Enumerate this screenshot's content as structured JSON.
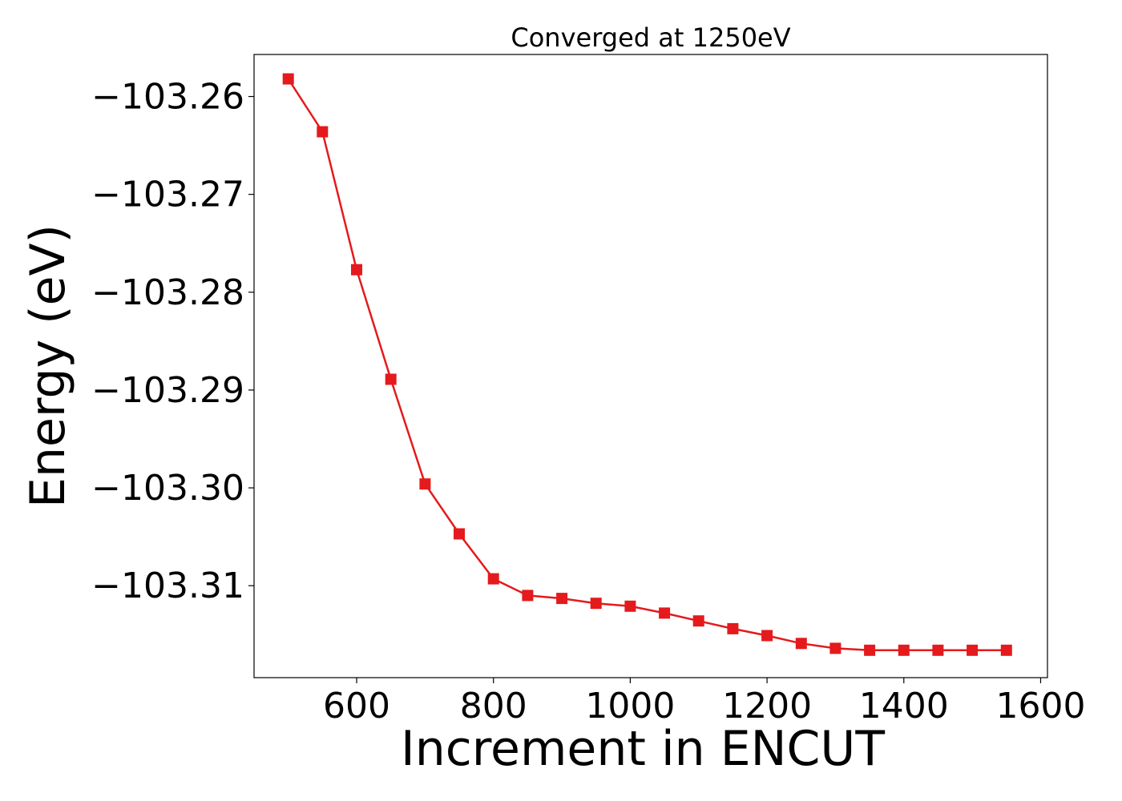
{
  "chart_data": {
    "type": "line",
    "title": "Converged at 1250eV",
    "xlabel": "Increment in ENCUT",
    "ylabel": "Energy (eV)",
    "xlim": [
      450,
      1610
    ],
    "ylim": [
      -103.3194,
      -103.2557
    ],
    "x_ticks": [
      600,
      800,
      1000,
      1200,
      1400,
      1600
    ],
    "x_tick_labels": [
      "600",
      "800",
      "1000",
      "1200",
      "1400",
      "1600"
    ],
    "y_ticks": [
      -103.26,
      -103.27,
      -103.28,
      -103.29,
      -103.3,
      -103.31
    ],
    "y_tick_labels": [
      "−103.26",
      "−103.27",
      "−103.28",
      "−103.29",
      "−103.30",
      "−103.31"
    ],
    "grid": false,
    "series": [
      {
        "color": "#e41a1c",
        "marker": "square",
        "x": [
          500,
          550,
          600,
          650,
          700,
          750,
          800,
          850,
          900,
          950,
          1000,
          1050,
          1100,
          1150,
          1200,
          1250,
          1300,
          1350,
          1400,
          1450,
          1500,
          1550
        ],
        "values": [
          -103.2582,
          -103.2636,
          -103.2777,
          -103.2889,
          -103.2996,
          -103.3047,
          -103.3093,
          -103.311,
          -103.3113,
          -103.3118,
          -103.3121,
          -103.3128,
          -103.3136,
          -103.3144,
          -103.3151,
          -103.3159,
          -103.3164,
          -103.3166,
          -103.3166,
          -103.3166,
          -103.3166,
          -103.3166
        ]
      }
    ]
  }
}
